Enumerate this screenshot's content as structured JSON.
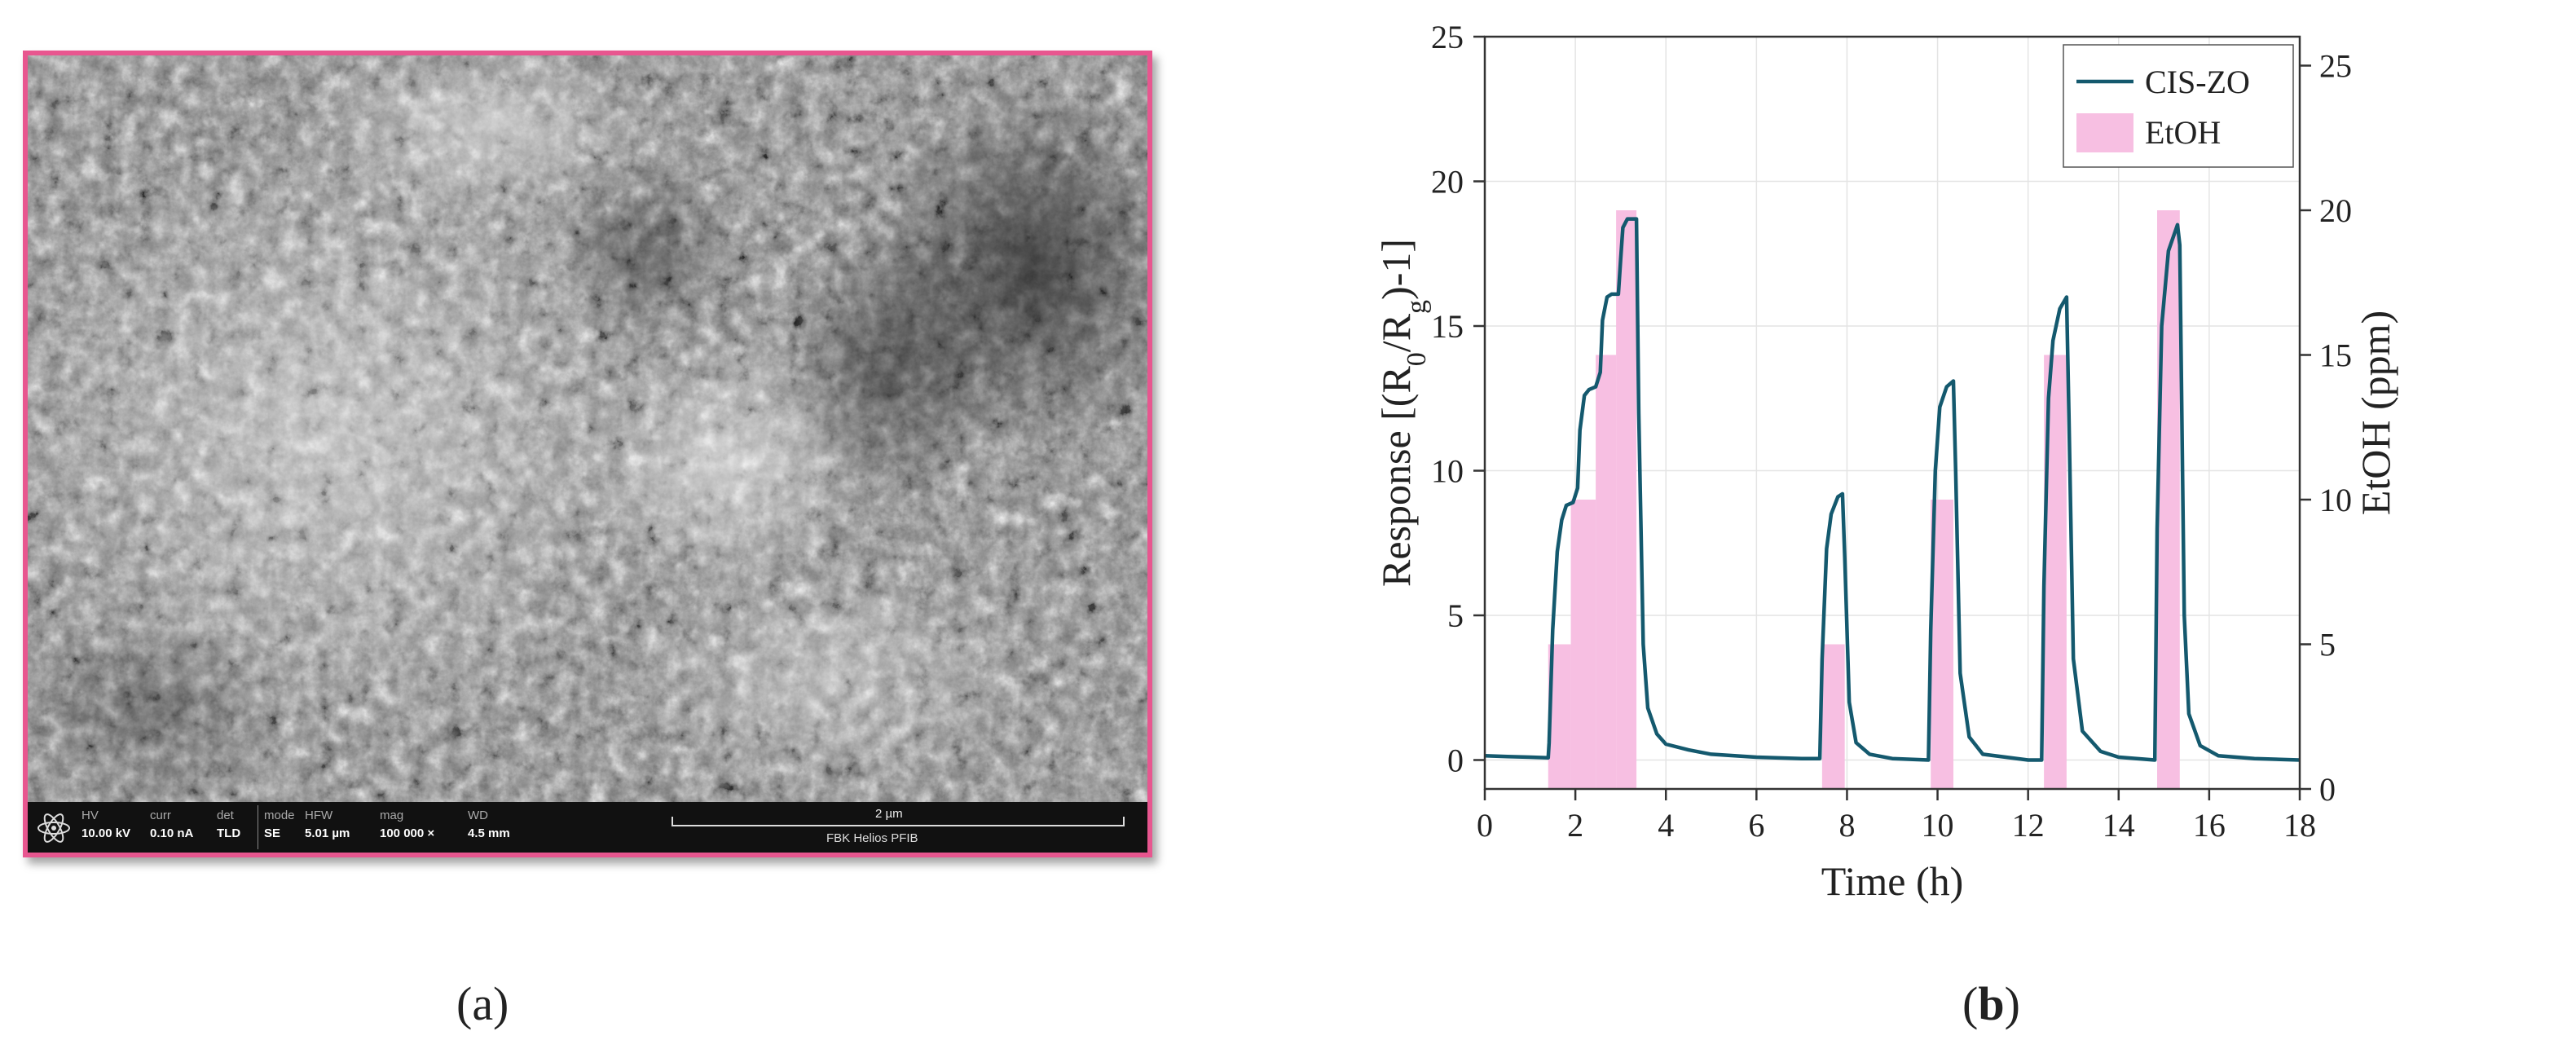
{
  "panel_a": {
    "caption": "(a)",
    "sem_bar": {
      "hv_label": "HV",
      "hv_value": "10.00 kV",
      "curr_label": "curr",
      "curr_value": "0.10 nA",
      "det_label": "det",
      "det_value": "TLD",
      "mode_label": "mode",
      "mode_value": "SE",
      "hfw_label": "HFW",
      "hfw_value": "5.01 µm",
      "mag_label": "mag",
      "mag_value": "100 000 ×",
      "wd_label": "WD",
      "wd_value": "4.5 mm",
      "scale_label": "2 µm",
      "instrument": "FBK Helios PFIB"
    }
  },
  "panel_b": {
    "caption": "(b)"
  },
  "chart_data": {
    "type": "line",
    "xlabel": "Time (h)",
    "ylabel": "Response [(R0/Rg)-1]",
    "y2label": "EtOH (ppm)",
    "xlim": [
      0,
      18
    ],
    "ylim": [
      -1,
      25
    ],
    "y2lim": [
      0,
      26
    ],
    "xticks": [
      0,
      2,
      4,
      6,
      8,
      10,
      12,
      14,
      16,
      18
    ],
    "yticks": [
      0,
      5,
      10,
      15,
      20,
      25
    ],
    "y2ticks": [
      0,
      5,
      10,
      15,
      20,
      25
    ],
    "grid": true,
    "legend_position": "top-right",
    "line_color": "#14596e",
    "bar_color": "#f7bfe2",
    "series": [
      {
        "name": "CIS-ZO",
        "axis": "left",
        "x": [
          0,
          0.5,
          1.0,
          1.4,
          1.42,
          1.5,
          1.6,
          1.7,
          1.8,
          1.95,
          2.05,
          2.1,
          2.2,
          2.3,
          2.45,
          2.55,
          2.6,
          2.7,
          2.8,
          2.95,
          3.0,
          3.05,
          3.15,
          3.35,
          3.4,
          3.5,
          3.6,
          3.8,
          4.0,
          4.5,
          5.0,
          6.0,
          7.0,
          7.4,
          7.45,
          7.55,
          7.65,
          7.8,
          7.9,
          7.95,
          8.05,
          8.2,
          8.5,
          9.0,
          9.8,
          9.85,
          9.95,
          10.05,
          10.2,
          10.35,
          10.4,
          10.5,
          10.7,
          11.0,
          12.0,
          12.3,
          12.35,
          12.45,
          12.55,
          12.7,
          12.85,
          12.9,
          13.0,
          13.2,
          13.6,
          14.0,
          14.8,
          14.85,
          14.95,
          15.1,
          15.3,
          15.35,
          15.45,
          15.55,
          15.8,
          16.2,
          17.0,
          18.0
        ],
        "y": [
          0.15,
          0.12,
          0.1,
          0.08,
          0.6,
          4.5,
          7.2,
          8.3,
          8.8,
          8.9,
          9.4,
          11.4,
          12.6,
          12.8,
          12.9,
          13.4,
          15.2,
          16.0,
          16.1,
          16.1,
          17.3,
          18.4,
          18.7,
          18.7,
          12.0,
          4.0,
          1.8,
          0.9,
          0.55,
          0.35,
          0.2,
          0.1,
          0.05,
          0.05,
          3.5,
          7.3,
          8.5,
          9.1,
          9.2,
          7.0,
          2.0,
          0.6,
          0.2,
          0.05,
          0.0,
          4.5,
          10.0,
          12.2,
          12.9,
          13.1,
          10.0,
          3.0,
          0.8,
          0.2,
          0.0,
          0.0,
          6.0,
          12.5,
          14.5,
          15.6,
          16.0,
          12.0,
          3.5,
          1.0,
          0.3,
          0.1,
          0.0,
          8.0,
          15.0,
          17.6,
          18.5,
          17.8,
          5.0,
          1.6,
          0.5,
          0.15,
          0.05,
          0.0
        ]
      },
      {
        "name": "EtOH",
        "axis": "right",
        "type": "bar",
        "bars": [
          {
            "x0": 1.4,
            "x1": 1.9,
            "value": 5
          },
          {
            "x0": 1.9,
            "x1": 2.45,
            "value": 10
          },
          {
            "x0": 2.45,
            "x1": 2.9,
            "value": 15
          },
          {
            "x0": 2.9,
            "x1": 3.35,
            "value": 20
          },
          {
            "x0": 7.45,
            "x1": 7.95,
            "value": 5
          },
          {
            "x0": 9.85,
            "x1": 10.35,
            "value": 10
          },
          {
            "x0": 12.35,
            "x1": 12.85,
            "value": 15
          },
          {
            "x0": 14.85,
            "x1": 15.35,
            "value": 20
          }
        ]
      }
    ]
  }
}
